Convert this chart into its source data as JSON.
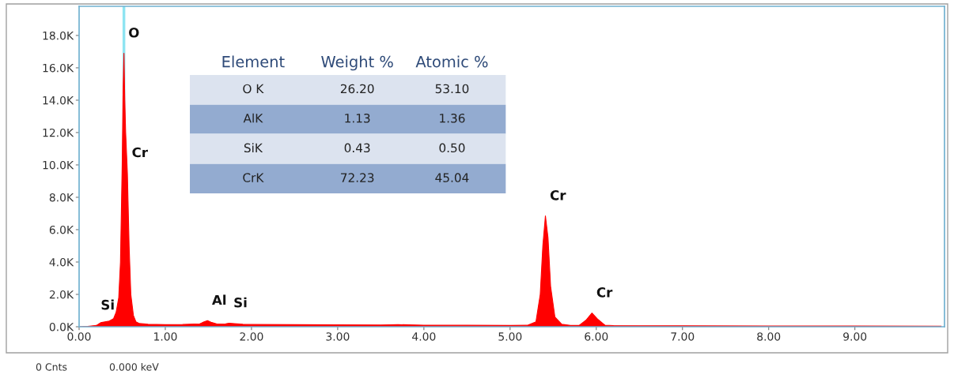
{
  "chart_data": {
    "type": "area",
    "x": [
      0,
      0.1,
      0.2,
      0.25,
      0.3,
      0.35,
      0.4,
      0.43,
      0.46,
      0.48,
      0.5,
      0.51,
      0.52,
      0.53,
      0.54,
      0.56,
      0.58,
      0.6,
      0.63,
      0.66,
      0.7,
      0.8,
      1.0,
      1.2,
      1.4,
      1.45,
      1.49,
      1.53,
      1.6,
      1.7,
      1.74,
      1.8,
      1.9,
      2.0,
      2.5,
      3.0,
      3.5,
      3.7,
      4.0,
      4.5,
      5.0,
      5.2,
      5.3,
      5.35,
      5.38,
      5.41,
      5.44,
      5.47,
      5.52,
      5.6,
      5.7,
      5.8,
      5.88,
      5.95,
      6.02,
      6.1,
      6.2,
      6.5,
      7,
      8,
      9,
      10
    ],
    "series": [
      {
        "color": "#ff0000",
        "values": [
          0,
          20,
          80,
          250,
          300,
          350,
          500,
          900,
          1800,
          4000,
          10000,
          14500,
          16900,
          14000,
          12000,
          9500,
          5000,
          2000,
          700,
          300,
          200,
          150,
          130,
          140,
          180,
          300,
          380,
          280,
          170,
          180,
          220,
          190,
          150,
          140,
          130,
          120,
          110,
          130,
          100,
          90,
          80,
          90,
          300,
          2000,
          5000,
          6850,
          5500,
          2500,
          600,
          150,
          80,
          80,
          400,
          850,
          450,
          100,
          70,
          60,
          60,
          50,
          50,
          40
        ]
      }
    ],
    "xlim": [
      0,
      10.04
    ],
    "ylim": [
      0,
      19800
    ],
    "xticks": [
      {
        "value": 0,
        "label": "0.00"
      },
      {
        "value": 1,
        "label": "1.00"
      },
      {
        "value": 2,
        "label": "2.00"
      },
      {
        "value": 3,
        "label": "3.00"
      },
      {
        "value": 4,
        "label": "4.00"
      },
      {
        "value": 5,
        "label": "5.00"
      },
      {
        "value": 6,
        "label": "6.00"
      },
      {
        "value": 7,
        "label": "7.00"
      },
      {
        "value": 8,
        "label": "8.00"
      },
      {
        "value": 9,
        "label": "9.00"
      }
    ],
    "yticks": [
      {
        "value": 0,
        "label": "0.0K"
      },
      {
        "value": 2000,
        "label": "2.0K"
      },
      {
        "value": 4000,
        "label": "4.0K"
      },
      {
        "value": 6000,
        "label": "6.0K"
      },
      {
        "value": 8000,
        "label": "8.0K"
      },
      {
        "value": 10000,
        "label": "10.0K"
      },
      {
        "value": 12000,
        "label": "12.0K"
      },
      {
        "value": 14000,
        "label": "14.0K"
      },
      {
        "value": 16000,
        "label": "16.0K"
      },
      {
        "value": 18000,
        "label": "18.0K"
      }
    ],
    "ref_lines": [
      {
        "axis": "x",
        "value": 0.52,
        "color": "#8ee4f2"
      }
    ],
    "grid": false,
    "legend": false,
    "annotations": [
      {
        "text": "Si",
        "x": 0.2,
        "y": 80
      },
      {
        "text": "O",
        "x": 0.52,
        "y": 16900
      },
      {
        "text": "Cr",
        "x": 0.56,
        "y": 9500
      },
      {
        "text": "Al",
        "x": 1.49,
        "y": 380
      },
      {
        "text": "Si",
        "x": 1.74,
        "y": 220
      },
      {
        "text": "Cr",
        "x": 5.41,
        "y": 6850
      },
      {
        "text": "Cr",
        "x": 5.95,
        "y": 850
      },
      "Element",
      "Weight %",
      "Atomic %",
      "O K",
      "26.20",
      "53.10",
      "AlK",
      "1.13",
      "1.36",
      "SiK",
      "0.43",
      "0.50",
      "CrK",
      "72.23",
      "45.04",
      "0 Cnts",
      "0.000 keV"
    ]
  }
}
